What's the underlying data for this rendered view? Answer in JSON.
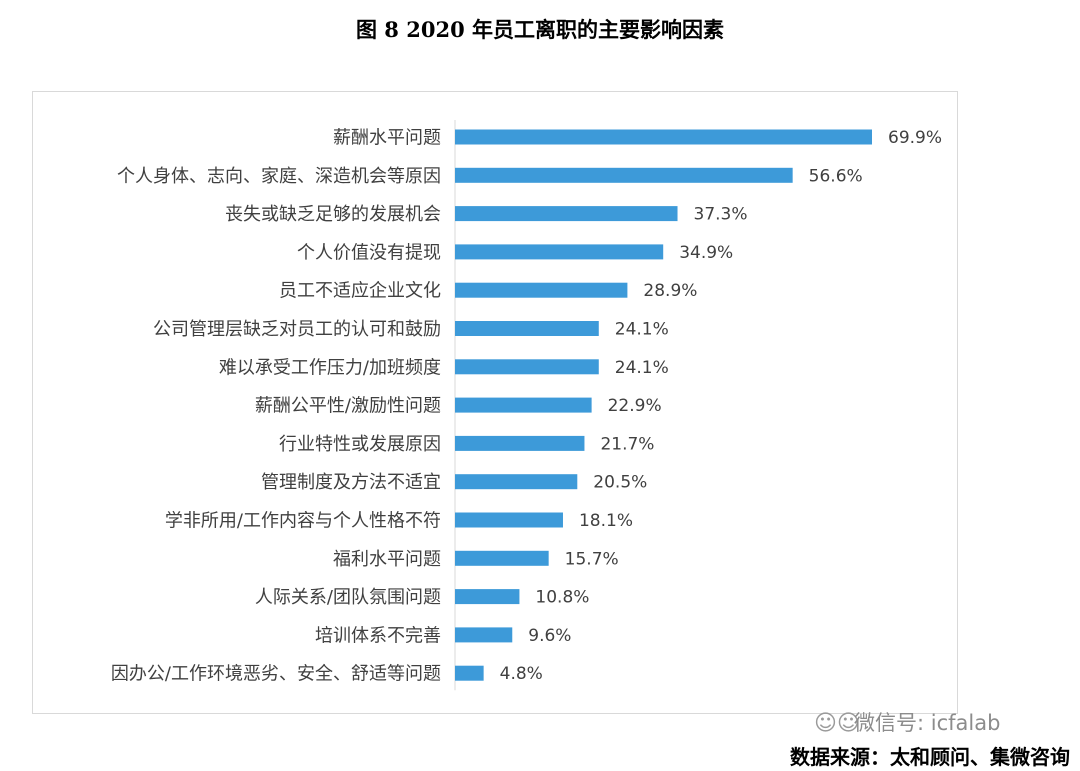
{
  "title": "图 8 2020 年员工离职的主要影响因素",
  "watermark": {
    "icon": "wechat-icon",
    "text": "微信号: icfalab"
  },
  "source": "数据来源：太和顾问、集微咨询",
  "colors": {
    "bar": "#3d9ad9",
    "label": "#404040",
    "axis": "#d9d9d9"
  },
  "chart_data": {
    "type": "bar",
    "orientation": "horizontal",
    "categories": [
      "薪酬水平问题",
      "个人身体、志向、家庭、深造机会等原因",
      "丧失或缺乏足够的发展机会",
      "个人价值没有提现",
      "员工不适应企业文化",
      "公司管理层缺乏对员工的认可和鼓励",
      "难以承受工作压力/加班频度",
      "薪酬公平性/激励性问题",
      "行业特性或发展原因",
      "管理制度及方法不适宜",
      "学非所用/工作内容与个人性格不符",
      "福利水平问题",
      "人际关系/团队氛围问题",
      "培训体系不完善",
      "因办公/工作环境恶劣、安全、舒适等问题"
    ],
    "values": [
      69.9,
      56.6,
      37.3,
      34.9,
      28.9,
      24.1,
      24.1,
      22.9,
      21.7,
      20.5,
      18.1,
      15.7,
      10.8,
      9.6,
      4.8
    ],
    "value_labels": [
      "69.9%",
      "56.6%",
      "37.3%",
      "34.9%",
      "28.9%",
      "24.1%",
      "24.1%",
      "22.9%",
      "21.7%",
      "20.5%",
      "18.1%",
      "15.7%",
      "10.8%",
      "9.6%",
      "4.8%"
    ],
    "unit": "%",
    "xlim": [
      0,
      70
    ],
    "grid": false,
    "legend": false
  }
}
